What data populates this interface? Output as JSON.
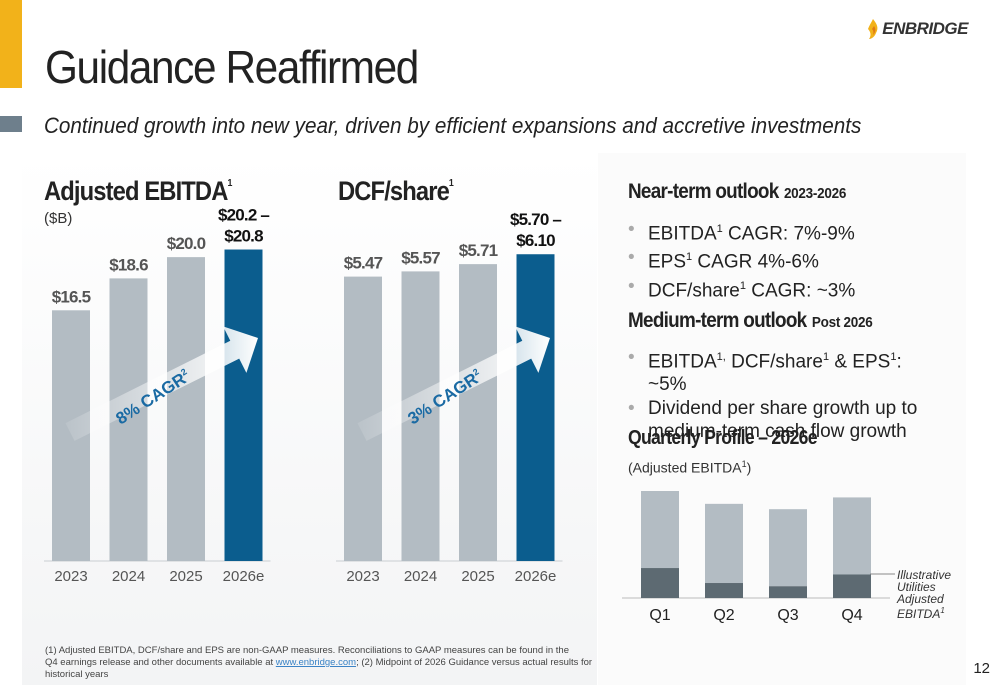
{
  "header": {
    "title": "Guidance Reaffirmed",
    "subtitle": "Continued growth into new year, driven by efficient expansions and accretive investments",
    "logo_text": "ENBRIDGE",
    "page_number": "12"
  },
  "colors": {
    "accent": "#f2b21a",
    "bar_gray": "#b3bcc3",
    "bar_blue": "#0b5d8e",
    "dark_bar": "#5d6a72"
  },
  "left_charts": [
    {
      "title": "Adjusted EBITDA",
      "sup": "1",
      "unit": "($B)",
      "cagr": "8% CAGR",
      "cagr_sup": "2"
    },
    {
      "title": "DCF/share",
      "sup": "1",
      "cagr": "3% CAGR",
      "cagr_sup": "2"
    }
  ],
  "chart_data": [
    {
      "type": "bar",
      "title": "Adjusted EBITDA",
      "ylabel": "($B)",
      "categories": [
        "2023",
        "2024",
        "2025",
        "2026e"
      ],
      "values": [
        16.5,
        18.6,
        20.0,
        20.5
      ],
      "labels": [
        "$16.5",
        "$18.6",
        "$20.0",
        "$20.2 –\n$20.8"
      ],
      "highlight_index": 3,
      "annotation": "8% CAGR"
    },
    {
      "type": "bar",
      "title": "DCF/share",
      "categories": [
        "2023",
        "2024",
        "2025",
        "2026e"
      ],
      "values": [
        5.47,
        5.57,
        5.71,
        5.9
      ],
      "labels": [
        "$5.47",
        "$5.57",
        "$5.71",
        "$5.70 –\n$6.10"
      ],
      "highlight_index": 3,
      "annotation": "3% CAGR"
    },
    {
      "type": "bar",
      "title": "Quarterly Profile – 2026e",
      "ylabel": "(Adjusted EBITDA1)",
      "categories": [
        "Q1",
        "Q2",
        "Q3",
        "Q4"
      ],
      "series": [
        {
          "name": "Utilities",
          "values": [
            0.28,
            0.14,
            0.11,
            0.22
          ]
        },
        {
          "values": [
            0.72,
            0.74,
            0.72,
            0.72
          ]
        }
      ],
      "stacked": true,
      "note": "Illustrative Utilities Adjusted EBITDA1"
    }
  ],
  "near_term": {
    "heading": "Near-term outlook",
    "period": "2023-2026",
    "bullets": [
      {
        "pre": "EBITDA",
        "sup": "1",
        "post": " CAGR: 7%-9%"
      },
      {
        "pre": "EPS",
        "sup": "1",
        "post": " CAGR 4%-6%"
      },
      {
        "pre": "DCF/share",
        "sup": "1",
        "post": " CAGR: ~3%"
      }
    ]
  },
  "medium_term": {
    "heading": "Medium-term outlook",
    "period": "Post 2026",
    "bullet1": {
      "a": "EBITDA",
      "s1": "1,",
      "b": " DCF/share",
      "s2": "1",
      "c": " & EPS",
      "s3": "1",
      "d": ": ~5%"
    },
    "bullet2": "Dividend per share growth up to medium-term cash flow growth"
  },
  "quarterly": {
    "heading": "Quarterly Profile – 2026e",
    "sub_pre": "(Adjusted EBITDA",
    "sub_sup": "1",
    "sub_post": ")",
    "note_lines": [
      "Illustrative",
      "Utilities",
      "Adjusted",
      "EBITDA"
    ],
    "note_sup": "1"
  },
  "footnote": {
    "line1": "(1) Adjusted EBITDA, DCF/share and EPS are non-GAAP measures. Reconciliations to GAAP measures can be found in the",
    "line2_pre": "Q4 earnings release and other documents available at ",
    "link": "www.enbridge.com",
    "line2_post": "; (2) Midpoint of 2026 Guidance versus actual results for historical years"
  }
}
